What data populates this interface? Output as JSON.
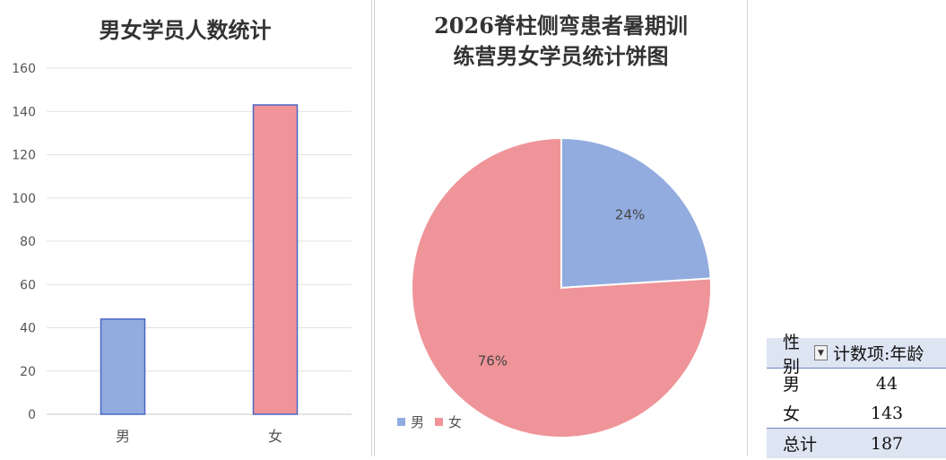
{
  "bar_chart": {
    "title": "男女学员人数统计",
    "yticks": [
      "0",
      "20",
      "40",
      "60",
      "80",
      "100",
      "120",
      "140",
      "160"
    ]
  },
  "pie_chart": {
    "title_line1": "2026脊柱侧弯患者暑期训",
    "title_line2": "练营男女学员统计饼图",
    "legend": [
      {
        "label": "男",
        "color": "#93acdf"
      },
      {
        "label": "女",
        "color": "#ef9499"
      }
    ]
  },
  "pivot": {
    "header_field": "性别",
    "header_value": "计数项:年龄",
    "rows": [
      {
        "label": "男",
        "value": "44"
      },
      {
        "label": "女",
        "value": "143"
      }
    ],
    "total_label": "总计",
    "total_value": "187"
  },
  "chart_data": [
    {
      "type": "bar",
      "title": "男女学员人数统计",
      "categories": [
        "男",
        "女"
      ],
      "values": [
        44,
        143
      ],
      "colors": [
        "#93acdf",
        "#ef9499"
      ],
      "ylim": [
        0,
        160
      ],
      "ytick_step": 20,
      "grid": true,
      "xlabel": "",
      "ylabel": ""
    },
    {
      "type": "pie",
      "title": "2026脊柱侧弯患者暑期训练营男女学员统计饼图",
      "categories": [
        "男",
        "女"
      ],
      "values": [
        24,
        76
      ],
      "data_labels": [
        "24%",
        "76%"
      ],
      "colors": [
        "#93acdf",
        "#ef9499"
      ],
      "legend_position": "bottom-left"
    }
  ]
}
